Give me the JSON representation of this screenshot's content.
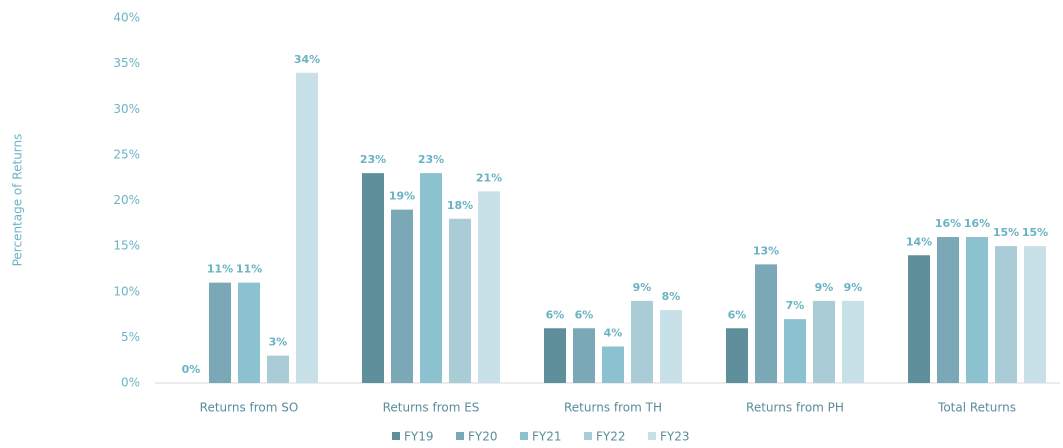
{
  "chart_data": {
    "type": "bar",
    "y_label": "Percentage of Returns",
    "categories": [
      "Returns from SO",
      "Returns from ES",
      "Returns from TH",
      "Returns from PH",
      "Total Returns"
    ],
    "series": [
      {
        "name": "FY19",
        "color": "#5e8f9b",
        "values": [
          0,
          23,
          6,
          6,
          14
        ],
        "value_labels": [
          "0%",
          "23%",
          "6%",
          "6%",
          "14%"
        ]
      },
      {
        "name": "FY20",
        "color": "#7ba8b6",
        "values": [
          11,
          19,
          6,
          13,
          16
        ],
        "value_labels": [
          "11%",
          "19%",
          "6%",
          "13%",
          "16%"
        ]
      },
      {
        "name": "FY21",
        "color": "#8cc2d0",
        "values": [
          11,
          23,
          4,
          7,
          16
        ],
        "value_labels": [
          "11%",
          "23%",
          "4%",
          "7%",
          "16%"
        ]
      },
      {
        "name": "FY22",
        "color": "#a9ccd7",
        "values": [
          3,
          18,
          9,
          9,
          15
        ],
        "value_labels": [
          "3%",
          "18%",
          "9%",
          "9%",
          "15%"
        ]
      },
      {
        "name": "FY23",
        "color": "#c8e0e7",
        "values": [
          34,
          21,
          8,
          9,
          15
        ],
        "value_labels": [
          "34%",
          "21%",
          "8%",
          "9%",
          "15%"
        ]
      }
    ],
    "ylim": [
      0,
      40
    ],
    "yticks": [
      {
        "value": 0,
        "label": "0%"
      },
      {
        "value": 5,
        "label": "5%"
      },
      {
        "value": 10,
        "label": "10%"
      },
      {
        "value": 15,
        "label": "15%"
      },
      {
        "value": 20,
        "label": "20%"
      },
      {
        "value": 25,
        "label": "25%"
      },
      {
        "value": 30,
        "label": "30%"
      },
      {
        "value": 35,
        "label": "35%"
      },
      {
        "value": 40,
        "label": "40%"
      }
    ],
    "legend": "bottom"
  }
}
